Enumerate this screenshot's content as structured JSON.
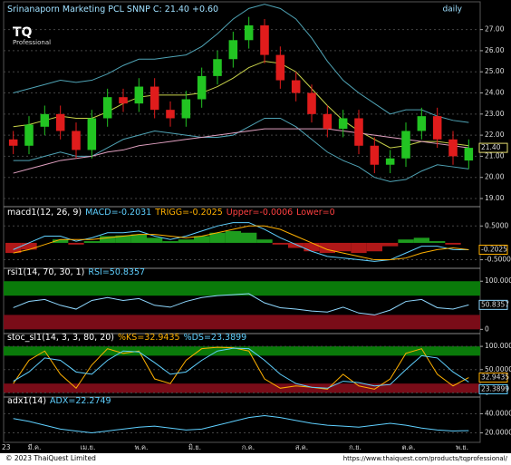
{
  "logo": {
    "mark": "TQ",
    "text": "Professional"
  },
  "footer": {
    "left": "© 2023 ThaiQuest Limited",
    "right": "https://www.thaiquest.com/products/tqprofessional/"
  },
  "x_axis": {
    "year_label": "23",
    "labels": [
      "มี.ค.",
      "เม.ย.",
      "พ.ค.",
      "มิ.ย.",
      "ก.ค.",
      "ส.ค.",
      "ก.ย.",
      "ต.ค.",
      "พ.ย."
    ]
  },
  "chart_data": [
    {
      "type": "candlestick",
      "title_parts": [
        {
          "text": "Srinanaporn Marketing PCL SNNP C: 21.40 +0.60",
          "color": "#9fe0ff"
        }
      ],
      "period": "daily",
      "up_color": "#22c422",
      "down_color": "#e01c1c",
      "grid": true,
      "ylim": [
        18.7,
        27.8
      ],
      "yticks": [
        {
          "value": 19,
          "label": "19.00"
        },
        {
          "value": 20,
          "label": "20.00"
        },
        {
          "value": 21,
          "label": "21.00"
        },
        {
          "value": 22,
          "label": "22.00"
        },
        {
          "value": 23,
          "label": "23.00"
        },
        {
          "value": 24,
          "label": "24.00"
        },
        {
          "value": 25,
          "label": "25.00"
        },
        {
          "value": 26,
          "label": "26.00"
        },
        {
          "value": 27,
          "label": "27.00"
        }
      ],
      "open": [
        21.8,
        21.5,
        22.4,
        23.0,
        22.2,
        21.3,
        22.8,
        23.8,
        23.5,
        24.3,
        23.2,
        22.8,
        23.7,
        24.8,
        25.6,
        26.5,
        27.2,
        25.8,
        24.6,
        24.0,
        23.0,
        22.3,
        22.8,
        21.5,
        20.6,
        20.9,
        22.2,
        22.9,
        21.8,
        20.8
      ],
      "high": [
        22.2,
        22.9,
        23.4,
        23.4,
        22.6,
        23.2,
        24.2,
        24.2,
        24.7,
        24.7,
        23.6,
        24.1,
        25.2,
        26.0,
        26.9,
        27.6,
        27.5,
        26.2,
        25.0,
        24.4,
        23.4,
        23.2,
        23.2,
        21.9,
        21.3,
        22.6,
        23.3,
        23.3,
        22.2,
        21.8
      ],
      "low": [
        21.1,
        21.1,
        22.0,
        21.8,
        20.9,
        20.9,
        22.4,
        23.1,
        23.1,
        22.8,
        22.4,
        22.4,
        23.3,
        24.4,
        25.2,
        26.1,
        25.4,
        24.2,
        23.6,
        22.6,
        21.9,
        21.9,
        21.1,
        20.2,
        20.2,
        20.5,
        21.8,
        21.4,
        20.6,
        20.4
      ],
      "close": [
        21.5,
        22.5,
        23.0,
        22.2,
        21.3,
        22.8,
        23.8,
        23.5,
        24.3,
        23.2,
        22.8,
        23.7,
        24.8,
        25.6,
        26.5,
        27.2,
        25.8,
        24.6,
        24.0,
        23.0,
        22.3,
        22.8,
        21.5,
        20.6,
        20.9,
        22.2,
        22.9,
        21.8,
        21.0,
        21.4
      ],
      "series": [
        {
          "color": "#4fa3b5",
          "values": [
            24.0,
            24.2,
            24.4,
            24.6,
            24.5,
            24.6,
            24.9,
            25.3,
            25.6,
            25.6,
            25.7,
            25.8,
            26.2,
            26.8,
            27.5,
            28.0,
            28.2,
            28.0,
            27.5,
            26.6,
            25.5,
            24.6,
            24.0,
            23.5,
            23.0,
            23.2,
            23.2,
            22.9,
            22.7,
            22.6
          ]
        },
        {
          "color": "#4fa3b5",
          "values": [
            20.8,
            20.8,
            21.0,
            21.2,
            21.0,
            21.0,
            21.4,
            21.8,
            22.0,
            22.2,
            22.1,
            22.0,
            21.9,
            21.9,
            22.0,
            22.4,
            22.8,
            22.8,
            22.4,
            21.8,
            21.2,
            20.8,
            20.5,
            20.0,
            19.8,
            19.9,
            20.3,
            20.6,
            20.5,
            20.4
          ]
        },
        {
          "color": "#c8d24a",
          "values": [
            22.4,
            22.5,
            22.7,
            22.9,
            22.8,
            22.8,
            23.1,
            23.5,
            23.8,
            23.9,
            23.9,
            23.9,
            24.0,
            24.3,
            24.7,
            25.2,
            25.5,
            25.4,
            25.0,
            24.2,
            23.4,
            22.7,
            22.2,
            21.8,
            21.4,
            21.5,
            21.7,
            21.7,
            21.6,
            21.5
          ]
        },
        {
          "color": "#e0a0c0",
          "values": [
            20.2,
            20.4,
            20.6,
            20.8,
            20.9,
            21.0,
            21.2,
            21.3,
            21.5,
            21.6,
            21.7,
            21.8,
            21.9,
            22.0,
            22.1,
            22.2,
            22.3,
            22.3,
            22.3,
            22.3,
            22.3,
            22.2,
            22.1,
            22.0,
            21.9,
            21.8,
            21.7,
            21.6,
            21.5,
            21.4
          ]
        }
      ],
      "tags": [
        {
          "value": 21.4,
          "label": "21.40",
          "color": "#e8e070"
        }
      ]
    },
    {
      "type": "macd",
      "title_parts": [
        {
          "text": "macd1(12, 26, 9)",
          "color": "#fff"
        },
        {
          "text": "MACD=-0.2031",
          "color": "#5fd0ff"
        },
        {
          "text": "TRIGG=-0.2025",
          "color": "#ffb000"
        },
        {
          "text": "Upper=-0.0006",
          "color": "#ff4040"
        },
        {
          "text": "Lower=0",
          "color": "#ff4040"
        }
      ],
      "positive_color": "#1e9c1e",
      "negative_color": "#b01818",
      "grid": true,
      "ylim": [
        -0.7,
        0.75
      ],
      "yticks": [
        {
          "value": 0.5,
          "label": "0.5000"
        },
        {
          "value": -0.5,
          "label": "-0.5000"
        }
      ],
      "histogram": [
        -0.3,
        -0.2,
        0,
        0.1,
        -0.05,
        0.05,
        0.2,
        0.22,
        0.25,
        0.15,
        0.05,
        0.1,
        0.2,
        0.3,
        0.35,
        0.3,
        0.1,
        -0.05,
        -0.15,
        -0.25,
        -0.3,
        -0.25,
        -0.3,
        -0.25,
        -0.1,
        0.1,
        0.15,
        0.05,
        -0.05,
        0
      ],
      "series": [
        {
          "color": "#5fd0ff",
          "values": [
            -0.2,
            0.0,
            0.2,
            0.2,
            0.05,
            0.15,
            0.3,
            0.3,
            0.35,
            0.2,
            0.1,
            0.2,
            0.35,
            0.5,
            0.6,
            0.6,
            0.4,
            0.15,
            -0.05,
            -0.25,
            -0.4,
            -0.45,
            -0.5,
            -0.55,
            -0.5,
            -0.3,
            -0.1,
            -0.1,
            -0.2,
            -0.2031
          ]
        },
        {
          "color": "#ffb000",
          "values": [
            -0.3,
            -0.2,
            -0.05,
            0.1,
            0.1,
            0.1,
            0.15,
            0.2,
            0.25,
            0.25,
            0.2,
            0.15,
            0.2,
            0.3,
            0.4,
            0.5,
            0.5,
            0.4,
            0.2,
            0.0,
            -0.2,
            -0.3,
            -0.4,
            -0.5,
            -0.5,
            -0.45,
            -0.3,
            -0.2,
            -0.15,
            -0.2025
          ]
        }
      ],
      "tags": [
        {
          "value": -0.2025,
          "label": "-0.2025",
          "color": "#ffb000"
        }
      ]
    },
    {
      "type": "oscillator",
      "title_parts": [
        {
          "text": "rsi1(14, 70, 30, 1)",
          "color": "#fff"
        },
        {
          "text": "RSI=50.8357",
          "color": "#5fd0ff"
        }
      ],
      "upper_zone": [
        70,
        100
      ],
      "lower_zone": [
        0,
        30
      ],
      "upper_color": "#0a7a0a",
      "lower_color": "#7a0c18",
      "grid": false,
      "ylim": [
        -5,
        108
      ],
      "yticks": [
        0,
        50,
        {
          "value": 100,
          "label": "100.0000"
        }
      ],
      "series": [
        {
          "color": "#8fd8ff",
          "values": [
            45,
            58,
            62,
            50,
            42,
            60,
            66,
            60,
            64,
            50,
            46,
            58,
            66,
            70,
            72,
            74,
            55,
            45,
            42,
            38,
            36,
            46,
            34,
            30,
            40,
            58,
            62,
            45,
            42,
            50.8357
          ]
        }
      ],
      "tags": [
        {
          "value": 50.8357,
          "label": "50.8357",
          "color": "#8fd8ff"
        }
      ]
    },
    {
      "type": "oscillator",
      "title_parts": [
        {
          "text": "stoc_sl1(14, 3, 3, 80, 20)",
          "color": "#fff"
        },
        {
          "text": "%KS=32.9435",
          "color": "#ffb000"
        },
        {
          "text": "%DS=23.3899",
          "color": "#5fd0ff"
        }
      ],
      "upper_zone": [
        80,
        100
      ],
      "lower_zone": [
        0,
        20
      ],
      "upper_color": "#0a7a0a",
      "lower_color": "#7a0c18",
      "grid": true,
      "ylim": [
        -5,
        108
      ],
      "yticks": [
        0,
        {
          "value": 50,
          "label": "50.0000"
        },
        {
          "value": 100,
          "label": "100.0000"
        }
      ],
      "series": [
        {
          "color": "#ffb000",
          "values": [
            20,
            70,
            90,
            40,
            10,
            60,
            95,
            85,
            90,
            30,
            20,
            70,
            95,
            98,
            97,
            90,
            30,
            10,
            15,
            12,
            8,
            40,
            15,
            8,
            30,
            85,
            95,
            40,
            15,
            32.9435
          ]
        },
        {
          "color": "#5fd0ff",
          "values": [
            25,
            45,
            75,
            70,
            45,
            40,
            70,
            90,
            88,
            65,
            40,
            45,
            70,
            90,
            96,
            95,
            70,
            40,
            20,
            12,
            10,
            25,
            22,
            15,
            18,
            50,
            80,
            75,
            45,
            23.3899
          ]
        }
      ],
      "tags": [
        {
          "value": 32.9435,
          "label": "32.9435",
          "color": "#ffb000"
        },
        {
          "value": 23.3899,
          "label": "23.3899",
          "color": "#5fd0ff"
        }
      ]
    },
    {
      "type": "line",
      "title_parts": [
        {
          "text": "adx1(14)",
          "color": "#fff"
        },
        {
          "text": "ADX=22.2749",
          "color": "#5fd0ff"
        }
      ],
      "grid": true,
      "ylim": [
        12,
        48
      ],
      "yticks": [
        {
          "value": 20,
          "label": "20.0000"
        },
        {
          "value": 40,
          "label": "40.0000"
        }
      ],
      "series": [
        {
          "color": "#5fd0ff",
          "values": [
            35,
            32,
            28,
            24,
            22,
            20,
            22,
            24,
            26,
            27,
            25,
            23,
            24,
            28,
            32,
            36,
            38,
            36,
            33,
            30,
            28,
            27,
            26,
            28,
            30,
            28,
            25,
            23,
            22,
            22.2749
          ]
        }
      ]
    }
  ]
}
